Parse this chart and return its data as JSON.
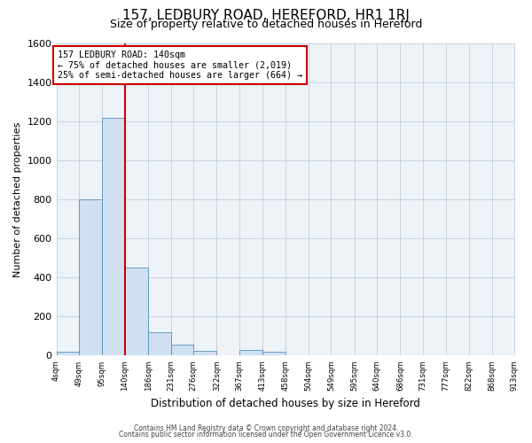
{
  "title": "157, LEDBURY ROAD, HEREFORD, HR1 1RJ",
  "subtitle": "Size of property relative to detached houses in Hereford",
  "xlabel": "Distribution of detached houses by size in Hereford",
  "ylabel": "Number of detached properties",
  "bin_edges": [
    4,
    49,
    95,
    140,
    186,
    231,
    276,
    322,
    367,
    413,
    458,
    504,
    549,
    595,
    640,
    686,
    731,
    777,
    822,
    868,
    913
  ],
  "bin_counts": [
    20,
    800,
    1220,
    450,
    120,
    55,
    25,
    0,
    30,
    20,
    0,
    0,
    0,
    0,
    0,
    0,
    0,
    0,
    0,
    0
  ],
  "bar_facecolor": "#d0e0f0",
  "bar_edgecolor": "#5590c0",
  "property_size": 140,
  "vline_color": "#cc0000",
  "annotation_box_edge_color": "#cc0000",
  "annotation_text_line1": "157 LEDBURY ROAD: 140sqm",
  "annotation_text_line2": "← 75% of detached houses are smaller (2,019)",
  "annotation_text_line3": "25% of semi-detached houses are larger (664) →",
  "ylim": [
    0,
    1600
  ],
  "yticks": [
    0,
    200,
    400,
    600,
    800,
    1000,
    1200,
    1400,
    1600
  ],
  "tick_labels": [
    "4sqm",
    "49sqm",
    "95sqm",
    "140sqm",
    "186sqm",
    "231sqm",
    "276sqm",
    "322sqm",
    "367sqm",
    "413sqm",
    "458sqm",
    "504sqm",
    "549sqm",
    "595sqm",
    "640sqm",
    "686sqm",
    "731sqm",
    "777sqm",
    "822sqm",
    "868sqm",
    "913sqm"
  ],
  "footer_line1": "Contains HM Land Registry data © Crown copyright and database right 2024.",
  "footer_line2": "Contains public sector information licensed under the Open Government Licence v3.0.",
  "background_color": "#ffffff",
  "plot_bg_color": "#eef3f8",
  "grid_color": "#c8d4e0",
  "figsize": [
    6.0,
    5.0
  ],
  "dpi": 100
}
